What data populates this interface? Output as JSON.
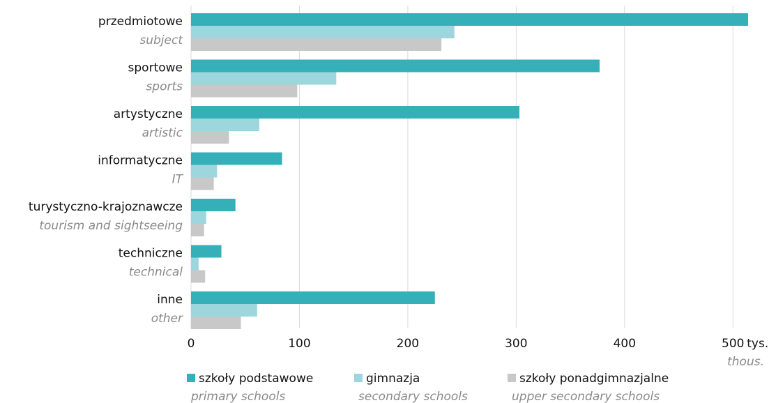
{
  "chart_data": {
    "type": "bar",
    "orientation": "horizontal",
    "categories": [
      {
        "label": "przedmiotowe",
        "label_en": "subject"
      },
      {
        "label": "sportowe",
        "label_en": "sports"
      },
      {
        "label": "artystyczne",
        "label_en": "artistic"
      },
      {
        "label": "informatyczne",
        "label_en": "IT"
      },
      {
        "label": "turystyczno-krajoznawcze",
        "label_en": "tourism and sightseeing"
      },
      {
        "label": "techniczne",
        "label_en": "technical"
      },
      {
        "label": "inne",
        "label_en": "other"
      }
    ],
    "series": [
      {
        "name": "szkoły podstawowe",
        "name_en": "primary schools",
        "color": "#36b0b8",
        "values": [
          514,
          377,
          303,
          84,
          41,
          28,
          225
        ]
      },
      {
        "name": "gimnazja",
        "name_en": "secondary schools",
        "color": "#9dd6dc",
        "values": [
          243,
          134,
          63,
          24,
          14,
          7,
          61
        ]
      },
      {
        "name": "szkoły ponadgimnazjalne",
        "name_en": "upper secondary schools",
        "color": "#c8c8c8",
        "values": [
          231,
          98,
          35,
          21,
          12,
          13,
          46
        ]
      }
    ],
    "x_ticks": [
      "0",
      "100",
      "200",
      "300",
      "400",
      "500"
    ],
    "x_unit": "tys.",
    "x_unit_en": "thous.",
    "xlim": [
      0,
      520
    ],
    "grid": true,
    "legend": "bottom"
  }
}
